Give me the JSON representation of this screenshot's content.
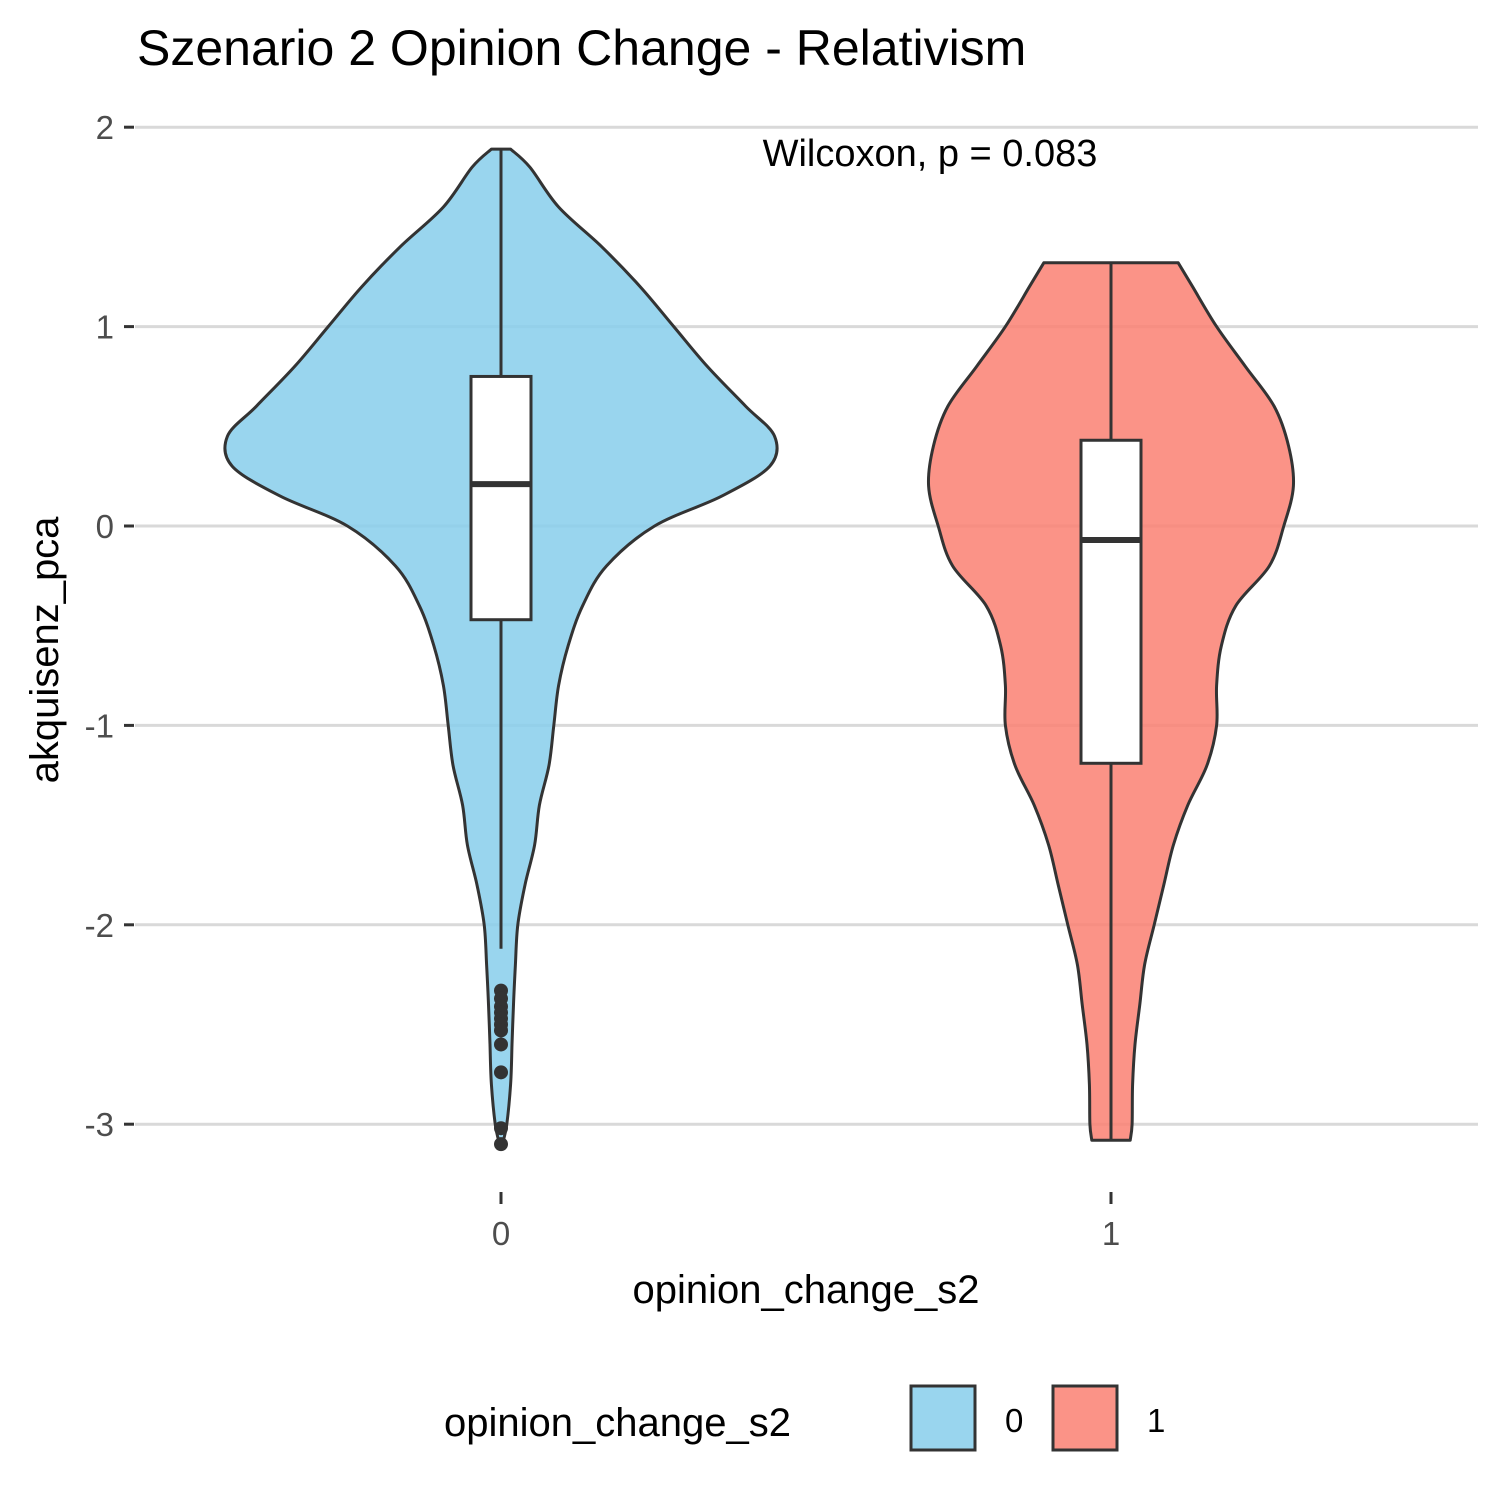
{
  "chart_data": {
    "type": "violin",
    "title": "Szenario 2 Opinion Change - Relativism",
    "xlabel": "opinion_change_s2",
    "ylabel": "akquisenz_pca",
    "categories": [
      "0",
      "1"
    ],
    "ylim": [
      -3.3,
      2.0
    ],
    "yticks": [
      2,
      1,
      0,
      -1,
      -2,
      -3
    ],
    "ytick_labels": [
      "2",
      "1",
      "0",
      "-1",
      "-2",
      "-3"
    ],
    "grid": "horizontal",
    "annotation": "Wilcoxon, p = 0.083",
    "legend": {
      "title": "opinion_change_s2",
      "position": "bottom",
      "entries": [
        {
          "label": "0",
          "color": "#87CEEB"
        },
        {
          "label": "1",
          "color": "#FA8072"
        }
      ]
    },
    "series": [
      {
        "name": "0",
        "color": "#87CEEB",
        "min": -3.1,
        "max": 1.89,
        "density": [
          [
            1.89,
            0.02
          ],
          [
            1.8,
            0.06
          ],
          [
            1.6,
            0.12
          ],
          [
            1.4,
            0.21
          ],
          [
            1.2,
            0.29
          ],
          [
            1.0,
            0.36
          ],
          [
            0.8,
            0.43
          ],
          [
            0.6,
            0.51
          ],
          [
            0.45,
            0.57
          ],
          [
            0.3,
            0.56
          ],
          [
            0.15,
            0.46
          ],
          [
            0.0,
            0.32
          ],
          [
            -0.2,
            0.22
          ],
          [
            -0.4,
            0.17
          ],
          [
            -0.6,
            0.14
          ],
          [
            -0.8,
            0.12
          ],
          [
            -1.0,
            0.11
          ],
          [
            -1.2,
            0.1
          ],
          [
            -1.4,
            0.08
          ],
          [
            -1.6,
            0.07
          ],
          [
            -1.8,
            0.05
          ],
          [
            -2.0,
            0.035
          ],
          [
            -2.2,
            0.03
          ],
          [
            -2.4,
            0.026
          ],
          [
            -2.6,
            0.023
          ],
          [
            -2.8,
            0.02
          ],
          [
            -3.0,
            0.012
          ],
          [
            -3.1,
            0.003
          ]
        ],
        "box": {
          "q1": -0.47,
          "median": 0.21,
          "q3": 0.75,
          "whisker_low": -2.12,
          "whisker_high": 1.89
        },
        "outliers": [
          -2.33,
          -2.37,
          -2.41,
          -2.44,
          -2.47,
          -2.5,
          -2.53,
          -2.6,
          -2.74,
          -3.02,
          -3.1
        ]
      },
      {
        "name": "1",
        "color": "#FA8072",
        "min": -3.08,
        "max": 1.32,
        "density": [
          [
            1.32,
            0.14
          ],
          [
            1.2,
            0.17
          ],
          [
            1.0,
            0.22
          ],
          [
            0.8,
            0.28
          ],
          [
            0.6,
            0.34
          ],
          [
            0.4,
            0.37
          ],
          [
            0.2,
            0.38
          ],
          [
            0.0,
            0.36
          ],
          [
            -0.2,
            0.33
          ],
          [
            -0.4,
            0.26
          ],
          [
            -0.6,
            0.23
          ],
          [
            -0.8,
            0.22
          ],
          [
            -1.0,
            0.22
          ],
          [
            -1.2,
            0.2
          ],
          [
            -1.4,
            0.16
          ],
          [
            -1.6,
            0.13
          ],
          [
            -1.8,
            0.11
          ],
          [
            -2.0,
            0.09
          ],
          [
            -2.2,
            0.07
          ],
          [
            -2.4,
            0.06
          ],
          [
            -2.6,
            0.05
          ],
          [
            -2.8,
            0.045
          ],
          [
            -3.0,
            0.044
          ],
          [
            -3.08,
            0.04
          ]
        ],
        "box": {
          "q1": -1.19,
          "median": -0.07,
          "q3": 0.43,
          "whisker_low": -3.08,
          "whisker_high": 1.32
        },
        "outliers": []
      }
    ]
  }
}
